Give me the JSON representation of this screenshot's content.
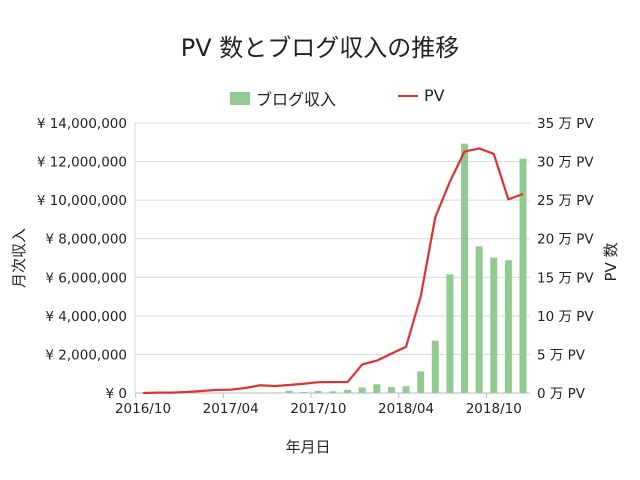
{
  "chart_data": {
    "type": "bar+line",
    "title": "PV 数とブログ収入の推移",
    "xlabel": "年月日",
    "ylabel": "月次収入",
    "y2label": "PV 数",
    "legend_position": "top",
    "grid": true,
    "ylim": [
      0,
      14000000
    ],
    "y2lim": [
      0,
      35
    ],
    "y_ticks": [
      "¥ 0",
      "¥ 2,000,000",
      "¥ 4,000,000",
      "¥ 6,000,000",
      "¥ 8,000,000",
      "¥ 10,000,000",
      "¥ 12,000,000",
      "¥ 14,000,000"
    ],
    "y2_ticks": [
      "0 万 PV",
      "5 万 PV",
      "10 万 PV",
      "15 万 PV",
      "20 万 PV",
      "25 万 PV",
      "30 万 PV",
      "35 万 PV"
    ],
    "x_tick_labels": [
      {
        "label": "2016/10",
        "category": "2016/10"
      },
      {
        "label": "2017/04",
        "category": "2017/04"
      },
      {
        "label": "2017/10",
        "category": "2017/10"
      },
      {
        "label": "2018/04",
        "category": "2018/04"
      },
      {
        "label": "2018/10",
        "category": "2018/10"
      }
    ],
    "categories": [
      "2016/10",
      "2016/11",
      "2016/12",
      "2017/01",
      "2017/02",
      "2017/03",
      "2017/04",
      "2017/05",
      "2017/06",
      "2017/07",
      "2017/08",
      "2017/09",
      "2017/10",
      "2017/11",
      "2017/12",
      "2018/01",
      "2018/02",
      "2018/03",
      "2018/04",
      "2018/05",
      "2018/06",
      "2018/07",
      "2018/08",
      "2018/09",
      "2018/10",
      "2018/11",
      "2018/12"
    ],
    "series": [
      {
        "name": "ブログ収入",
        "type": "bar",
        "axis": "left",
        "color": "#93c993",
        "values": [
          0,
          0,
          0,
          0,
          0,
          0,
          0,
          5000,
          20000,
          30000,
          120000,
          50000,
          100000,
          90000,
          160000,
          290000,
          450000,
          310000,
          350000,
          1120000,
          2710000,
          6150000,
          12930000,
          7600000,
          7020000,
          6880000,
          12150000
        ]
      },
      {
        "name": "PV",
        "type": "line",
        "axis": "right",
        "unit": "万 PV",
        "color": "#e03030",
        "values": [
          0,
          0.05,
          0.05,
          0.13,
          0.26,
          0.4,
          0.43,
          0.65,
          1.0,
          0.9,
          1.04,
          1.2,
          1.4,
          1.42,
          1.42,
          3.7,
          4.2,
          5.1,
          6.0,
          12.5,
          22.8,
          27.4,
          31.3,
          31.7,
          31.0,
          25.1,
          25.8
        ]
      }
    ]
  }
}
